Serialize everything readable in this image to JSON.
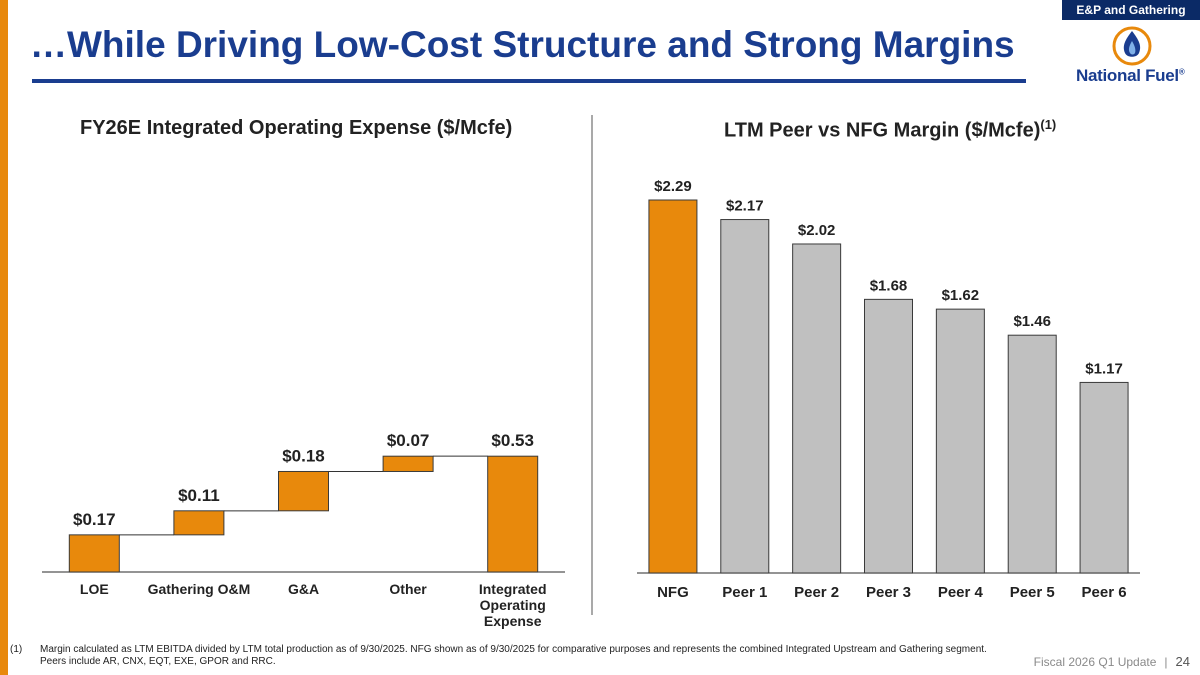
{
  "header": {
    "title": "…While Driving Low-Cost Structure and Strong Margins",
    "segment": "E&P and Gathering",
    "logo_text": "National Fuel",
    "logo_mark": "®"
  },
  "colors": {
    "accent": "#e8890c",
    "brand": "#1a3d8f",
    "peer_bar": "#c0c0c0"
  },
  "chart_data": [
    {
      "type": "bar",
      "variant": "waterfall",
      "title": "FY26E Integrated Operating Expense ($/Mcfe)",
      "categories": [
        "LOE",
        "Gathering O&M",
        "G&A",
        "Other",
        "Integrated Operating Expense"
      ],
      "values": [
        0.17,
        0.11,
        0.18,
        0.07,
        0.53
      ],
      "labels": [
        "$0.17",
        "$0.11",
        "$0.18",
        "$0.07",
        "$0.53"
      ],
      "total_index": 4,
      "ylim": [
        0,
        0.6
      ]
    },
    {
      "type": "bar",
      "title": "LTM Peer vs NFG Margin ($/Mcfe)",
      "title_superscript": "(1)",
      "categories": [
        "NFG",
        "Peer 1",
        "Peer 2",
        "Peer 3",
        "Peer 4",
        "Peer 5",
        "Peer 6"
      ],
      "values": [
        2.29,
        2.17,
        2.02,
        1.68,
        1.62,
        1.46,
        1.17
      ],
      "labels": [
        "$2.29",
        "$2.17",
        "$2.02",
        "$1.68",
        "$1.62",
        "$1.46",
        "$1.17"
      ],
      "highlight_index": 0,
      "ylim": [
        0,
        2.29
      ]
    }
  ],
  "footnote": {
    "number": "(1)",
    "line1": "Margin calculated as LTM EBITDA divided by LTM total production as of 9/30/2025.  NFG shown as of 9/30/2025 for comparative purposes and represents the combined Integrated Upstream and Gathering segment.",
    "line2": "Peers include AR, CNX, EQT, EXE, GPOR and RRC."
  },
  "footer": {
    "deck": "Fiscal 2026 Q1 Update",
    "separator": "|",
    "page": "24"
  }
}
